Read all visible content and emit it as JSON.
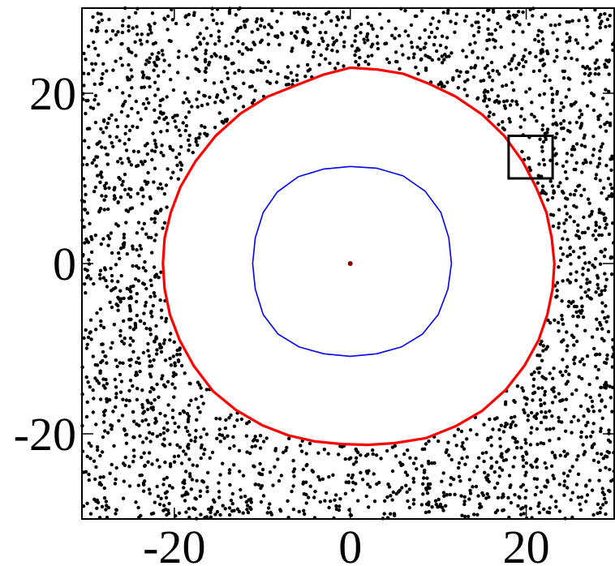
{
  "chart_data": {
    "type": "scatter",
    "title": "",
    "xlabel": "",
    "ylabel": "",
    "xlim": [
      -30.5,
      30
    ],
    "ylim": [
      -30,
      30
    ],
    "x_ticks": [
      -20,
      0,
      20
    ],
    "y_ticks": [
      20,
      0,
      -20
    ],
    "x_tick_labels": [
      "-20",
      "0",
      "20"
    ],
    "y_tick_labels": [
      "20",
      "0",
      "-20"
    ],
    "grid": false,
    "legend": "none",
    "series": [
      {
        "kind": "random-background-points",
        "color": "#000000",
        "count": 2600,
        "excluded_region": "inside red boundary"
      },
      {
        "kind": "closed-curve",
        "color": "#ff0000",
        "points": [
          [
            0,
            23
          ],
          [
            3,
            22.8
          ],
          [
            6,
            22.3
          ],
          [
            9,
            21.1
          ],
          [
            12,
            19.6
          ],
          [
            15,
            17.5
          ],
          [
            17.5,
            15
          ],
          [
            19.6,
            12
          ],
          [
            21.1,
            9
          ],
          [
            22.3,
            6
          ],
          [
            22.9,
            3
          ],
          [
            23.2,
            0
          ],
          [
            23,
            -3
          ],
          [
            22.4,
            -6
          ],
          [
            21.4,
            -9
          ],
          [
            19.8,
            -12
          ],
          [
            17.7,
            -14.8
          ],
          [
            15,
            -17.3
          ],
          [
            12,
            -19.1
          ],
          [
            8.6,
            -20.5
          ],
          [
            5,
            -21.1
          ],
          [
            2,
            -21.3
          ],
          [
            -1,
            -21.2
          ],
          [
            -4,
            -20.9
          ],
          [
            -7,
            -20.2
          ],
          [
            -10,
            -19
          ],
          [
            -13,
            -17.2
          ],
          [
            -15.6,
            -15
          ],
          [
            -17.8,
            -12
          ],
          [
            -19.4,
            -9
          ],
          [
            -20.5,
            -6
          ],
          [
            -21.1,
            -3
          ],
          [
            -21.3,
            0
          ],
          [
            -21.1,
            3
          ],
          [
            -20.4,
            6
          ],
          [
            -19.3,
            9
          ],
          [
            -17.6,
            12
          ],
          [
            -15.3,
            15
          ],
          [
            -12.5,
            17.6
          ],
          [
            -9.4,
            19.6
          ],
          [
            -6,
            21
          ],
          [
            -3,
            22.2
          ]
        ]
      },
      {
        "kind": "closed-curve",
        "color": "#0000ff",
        "points": [
          [
            0,
            11.4
          ],
          [
            3,
            11.2
          ],
          [
            6,
            10.3
          ],
          [
            8.5,
            8.5
          ],
          [
            10.3,
            6
          ],
          [
            11.2,
            3
          ],
          [
            11.5,
            0
          ],
          [
            11.1,
            -3
          ],
          [
            10,
            -6
          ],
          [
            8.2,
            -8.3
          ],
          [
            5.8,
            -9.8
          ],
          [
            3,
            -10.6
          ],
          [
            0,
            -10.9
          ],
          [
            -3,
            -10.6
          ],
          [
            -5.8,
            -9.8
          ],
          [
            -8.2,
            -8.3
          ],
          [
            -9.9,
            -6
          ],
          [
            -10.8,
            -3
          ],
          [
            -11.1,
            0
          ],
          [
            -10.8,
            3
          ],
          [
            -9.9,
            6
          ],
          [
            -8.3,
            8.4
          ],
          [
            -5.9,
            10.2
          ],
          [
            -3,
            11.1
          ]
        ]
      },
      {
        "kind": "center-point",
        "color": "#8b0000",
        "x": 0,
        "y": 0
      },
      {
        "kind": "rectangle",
        "color": "#000000",
        "x_range": [
          18,
          23
        ],
        "y_range": [
          10,
          15
        ]
      }
    ]
  }
}
